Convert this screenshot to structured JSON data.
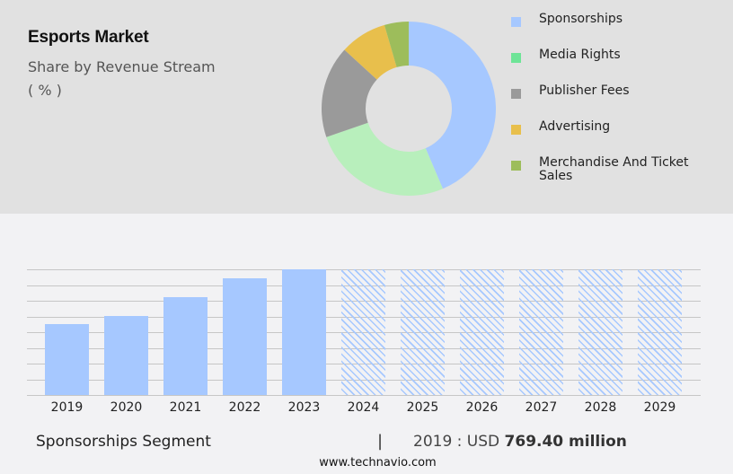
{
  "header": {
    "title": "Esports Market",
    "subtitle": "Share by Revenue Stream",
    "unit": "( % )"
  },
  "legend": {
    "items": [
      {
        "label": "Sponsorships",
        "color": "#a6c8ff"
      },
      {
        "label": "Media Rights",
        "color": "#6ee497"
      },
      {
        "label": "Publisher Fees",
        "color": "#9a9a9a"
      },
      {
        "label": "Advertising",
        "color": "#e8bf4c"
      },
      {
        "label": "Merchandise And Ticket Sales",
        "color": "#9dbd5b"
      }
    ]
  },
  "footer": {
    "segment": "Sponsorships Segment",
    "separator": "|",
    "value_prefix": "2019 : USD",
    "value_bold": "769.40 million",
    "url": "www.technavio.com"
  },
  "chart_data": [
    {
      "type": "pie",
      "subtype": "donut",
      "title": "Esports Market",
      "subtitle": "Share by Revenue Stream ( % )",
      "categories": [
        "Sponsorships",
        "Media Rights",
        "Publisher Fees",
        "Advertising",
        "Merchandise And Ticket Sales"
      ],
      "values": [
        43.6,
        26.1,
        17.1,
        8.7,
        4.5
      ],
      "colors": [
        "#a6c8ff",
        "#b8efbc",
        "#9a9a9a",
        "#e8bf4c",
        "#9dbd5b"
      ],
      "legend_position": "right"
    },
    {
      "type": "bar",
      "title": "Sponsorships Segment",
      "categories": [
        "2019",
        "2020",
        "2021",
        "2022",
        "2023",
        "2024",
        "2025",
        "2026",
        "2027",
        "2028",
        "2029"
      ],
      "values": [
        769.4,
        857,
        1062,
        1266,
        1364,
        1364,
        1364,
        1364,
        1364,
        1364,
        1364
      ],
      "forecast_from": "2024",
      "forecast_style": "hatched",
      "annotation": "2019 : USD 769.40 million",
      "xlabel": "",
      "ylabel": "",
      "ylim": [
        0,
        1364
      ],
      "grid": true,
      "y_tick_labels_visible": false
    }
  ]
}
